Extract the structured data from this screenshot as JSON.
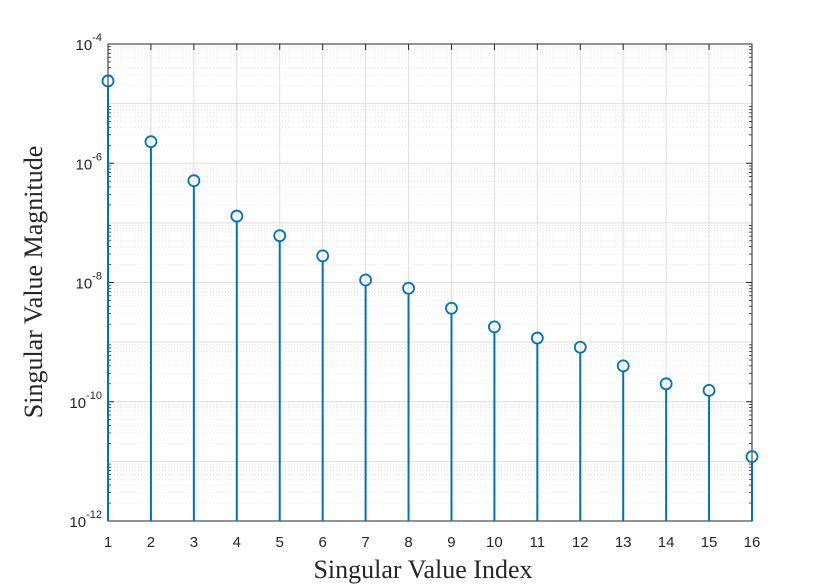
{
  "chart_data": {
    "type": "stem",
    "title": "",
    "xlabel": "Singular Value Index",
    "ylabel": "Singular Value Magnitude",
    "yscale": "log",
    "xlim": [
      1,
      16
    ],
    "ylim": [
      1e-12,
      0.0001
    ],
    "grid": true,
    "minor_grid": true,
    "x_ticks": [
      1,
      2,
      3,
      4,
      5,
      6,
      7,
      8,
      9,
      10,
      11,
      12,
      13,
      14,
      15,
      16
    ],
    "y_ticks": [
      {
        "base": "10",
        "exp": "-12",
        "value": 1e-12
      },
      {
        "base": "10",
        "exp": "-10",
        "value": 1e-10
      },
      {
        "base": "10",
        "exp": "-8",
        "value": 1e-08
      },
      {
        "base": "10",
        "exp": "-6",
        "value": 1e-06
      },
      {
        "base": "10",
        "exp": "-4",
        "value": 0.0001
      }
    ],
    "series": [
      {
        "color": "#0072BD",
        "marker": "circle",
        "x": [
          1,
          2,
          3,
          4,
          5,
          6,
          7,
          8,
          9,
          10,
          11,
          12,
          13,
          14,
          15,
          16
        ],
        "y": [
          2.4e-05,
          2.3e-06,
          5.1e-07,
          1.3e-07,
          6.1e-08,
          2.8e-08,
          1.1e-08,
          8e-09,
          3.7e-09,
          1.8e-09,
          1.17e-09,
          8.2e-10,
          4e-10,
          2e-10,
          1.55e-10,
          1.2e-11
        ]
      }
    ]
  }
}
